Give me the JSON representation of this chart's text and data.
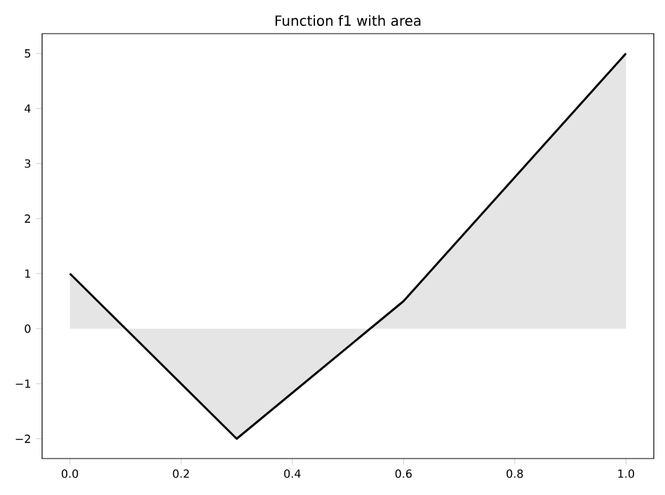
{
  "chart_data": {
    "type": "area",
    "title": "Function f1 with area",
    "x": [
      0,
      0.3,
      0.6,
      1
    ],
    "series": [
      {
        "color": "#e5e5e5",
        "values": [
          1,
          -2,
          0.5,
          5
        ]
      }
    ],
    "xlim": [
      -0.05,
      1.05
    ],
    "ylim": [
      -2.36,
      5.36
    ],
    "xticks": [
      {
        "value": 0,
        "label": "0.0"
      },
      {
        "value": 0.2,
        "label": "0.2"
      },
      {
        "value": 0.4,
        "label": "0.4"
      },
      {
        "value": 0.6,
        "label": "0.6"
      },
      {
        "value": 0.8,
        "label": "0.8"
      },
      {
        "value": 1,
        "label": "1.0"
      }
    ],
    "yticks": [
      {
        "value": -2,
        "label": "−2"
      },
      {
        "value": -1,
        "label": "−1"
      },
      0,
      1,
      2,
      3,
      4,
      5
    ],
    "grid": false
  }
}
